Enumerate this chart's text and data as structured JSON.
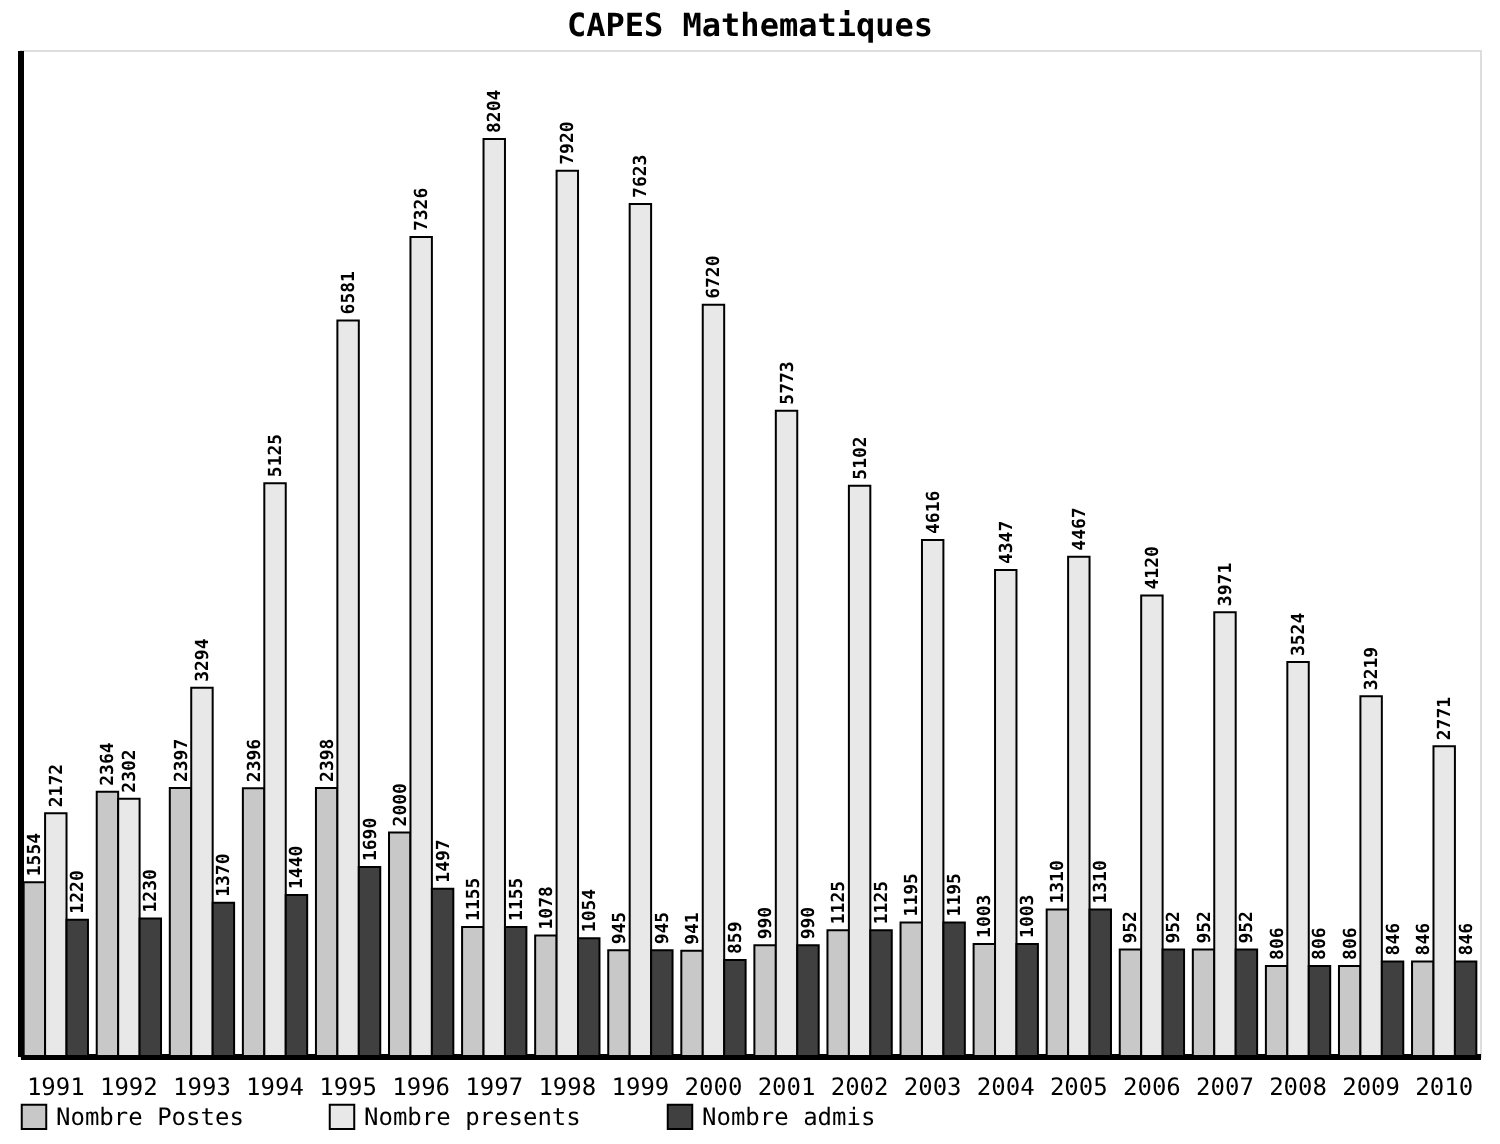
{
  "chart_data": {
    "type": "bar",
    "title": "CAPES Mathematiques",
    "categories": [
      "1991",
      "1992",
      "1993",
      "1994",
      "1995",
      "1996",
      "1997",
      "1998",
      "1999",
      "2000",
      "2001",
      "2002",
      "2003",
      "2004",
      "2005",
      "2006",
      "2007",
      "2008",
      "2009",
      "2010"
    ],
    "series": [
      {
        "name": "Nombre Postes",
        "color": "#c8c8c8",
        "values": [
          1554,
          2364,
          2397,
          2396,
          2398,
          2000,
          1155,
          1078,
          945,
          941,
          990,
          1125,
          1195,
          1003,
          1310,
          952,
          952,
          806,
          806,
          846
        ]
      },
      {
        "name": "Nombre presents",
        "color": "#e8e8e8",
        "values": [
          2172,
          2302,
          3294,
          5125,
          6581,
          7326,
          8204,
          7920,
          7623,
          6720,
          5773,
          5102,
          4616,
          4347,
          4467,
          4120,
          3971,
          3524,
          3219,
          2771
        ]
      },
      {
        "name": "Nombre admis",
        "color": "#404040",
        "values": [
          1220,
          1230,
          1370,
          1440,
          1690,
          1497,
          1155,
          1054,
          945,
          859,
          990,
          1125,
          1195,
          1003,
          1310,
          952,
          952,
          806,
          846,
          846
        ]
      }
    ],
    "ylim": [
      0,
      9000
    ],
    "data_labels": true,
    "grid": false,
    "legend": "bottom",
    "tick_labels": "x"
  }
}
